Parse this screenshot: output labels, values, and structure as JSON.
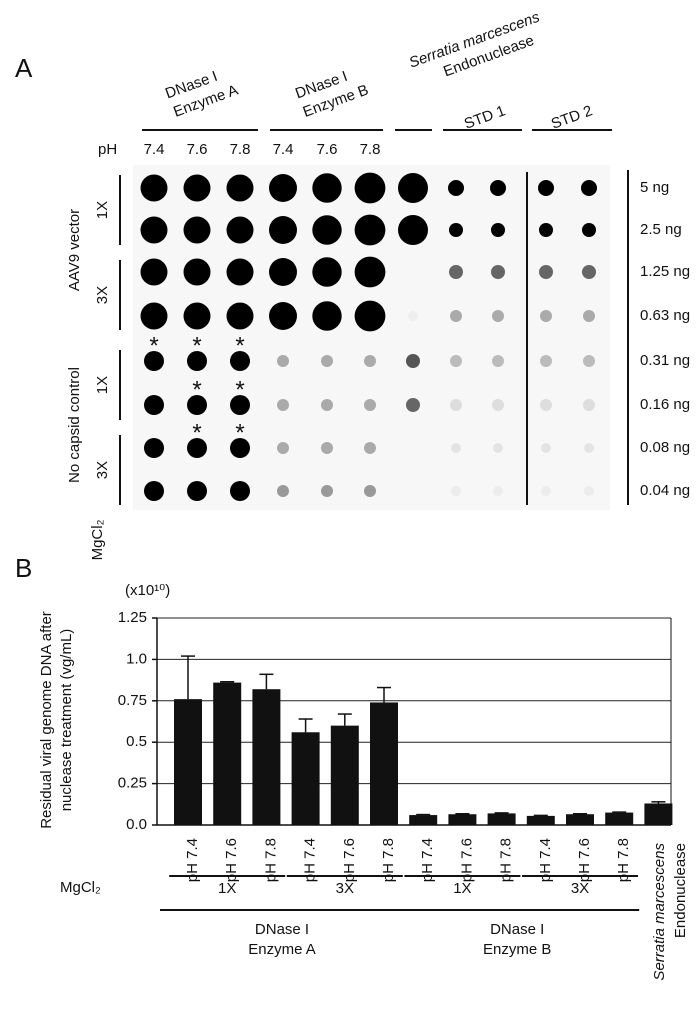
{
  "panel_a": {
    "label": "A",
    "column_groups": [
      {
        "lines": [
          "DNase I",
          "Enzyme A"
        ]
      },
      {
        "lines": [
          "DNase I",
          "Enzyme B"
        ]
      },
      {
        "lines": [
          "Serratia marcescens",
          "Endonuclease"
        ]
      },
      {
        "lines": [
          "STD 1"
        ]
      },
      {
        "lines": [
          "STD 2"
        ]
      }
    ],
    "ph_label": "pH",
    "ph_values": [
      "7.4",
      "7.6",
      "7.8",
      "7.4",
      "7.6",
      "7.8"
    ],
    "row_groups": [
      {
        "label": "AAV9 vector",
        "sub": [
          "1X",
          "3X"
        ]
      },
      {
        "label": "No capsid control",
        "sub": [
          "1X",
          "3X"
        ]
      }
    ],
    "mgcl2": "MgCl₂",
    "asterisk": "*",
    "amounts": [
      "5 ng",
      "2.5 ng",
      "1.25 ng",
      "0.63 ng",
      "0.31 ng",
      "0.16 ng",
      "0.08 ng",
      "0.04 ng"
    ]
  },
  "panel_b": {
    "label": "B"
  },
  "chart_data": {
    "type": "bar",
    "multiplier": "(x10¹⁰)",
    "y_label": [
      "Residual viral genome DNA after",
      "nuclease treatment (vg/mL)"
    ],
    "categories": [
      "pH 7.4",
      "pH 7.6",
      "pH 7.8",
      "pH 7.4",
      "pH 7.6",
      "pH 7.8",
      "pH 7.4",
      "pH 7.6",
      "pH 7.8",
      "pH 7.4",
      "pH 7.6",
      "pH 7.8",
      null
    ],
    "series": [
      {
        "color": "#111111",
        "values": [
          0.76,
          0.86,
          0.82,
          0.56,
          0.6,
          0.74,
          0.06,
          0.065,
          0.07,
          0.055,
          0.065,
          0.075,
          0.13
        ],
        "errors": [
          0.26,
          0.005,
          0.09,
          0.08,
          0.07,
          0.09,
          0.003,
          0.003,
          0.003,
          0.003,
          0.003,
          0.003,
          0.01
        ]
      }
    ],
    "ylim": [
      0,
      1.25
    ],
    "yticks": [
      {
        "value": 0,
        "label": "0.0"
      },
      0.25,
      0.5,
      0.75,
      {
        "value": 1,
        "label": "1.0"
      },
      1.25
    ],
    "grid": true,
    "mgcl2_label": "MgCl₂",
    "mgcl2_groups": [
      "1X",
      "3X",
      "1X",
      "3X"
    ],
    "enzyme_groups": [
      {
        "lines": [
          "DNase I",
          "Enzyme A"
        ]
      },
      {
        "lines": [
          "DNase I",
          "Enzyme B"
        ]
      },
      {
        "lines": [
          "Serratia marcescens",
          "Endonuclease"
        ]
      }
    ]
  }
}
